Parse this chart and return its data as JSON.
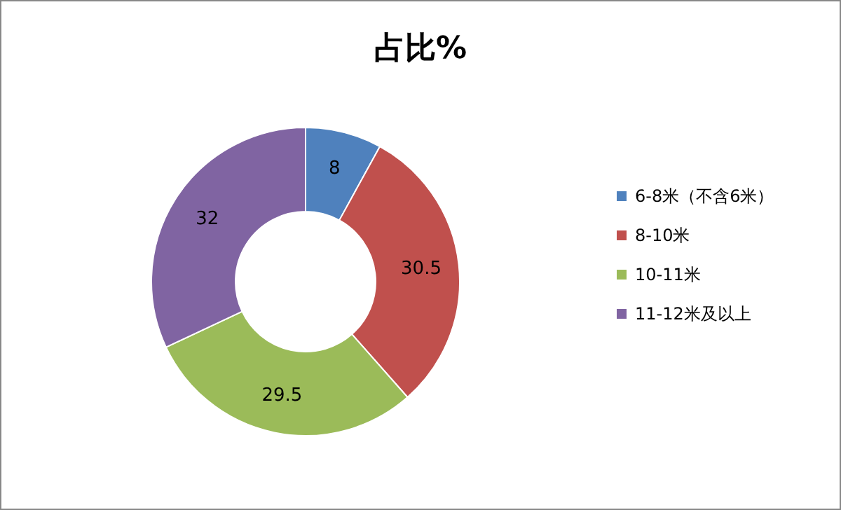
{
  "chart_data": {
    "type": "donut",
    "title": "占比%",
    "categories": [
      "6-8米（不含6米）",
      "8-10米",
      "10-11米",
      "11-12米及以上"
    ],
    "values": [
      8,
      30.5,
      29.5,
      32
    ],
    "colors": [
      "#4f81bd",
      "#c0504d",
      "#9bbb59",
      "#8064a2"
    ],
    "data_labels": true,
    "legend": "right"
  }
}
